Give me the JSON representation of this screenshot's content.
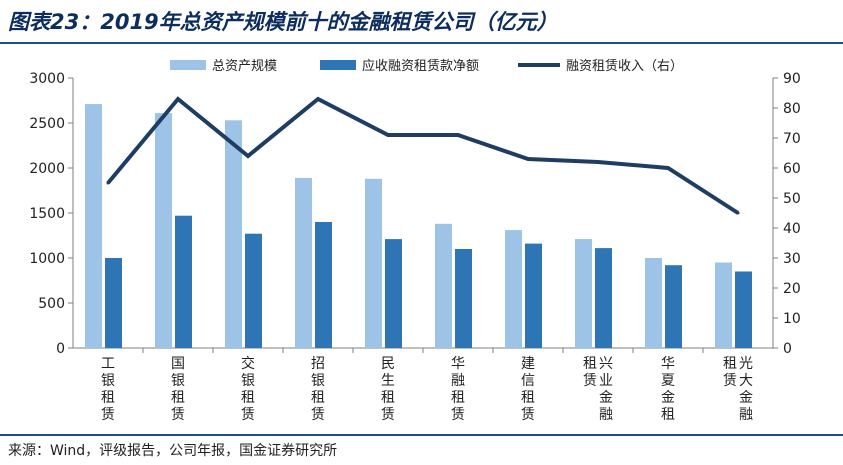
{
  "header": {
    "title": "图表23：2019年总资产规模前十的金融租赁公司（亿元）"
  },
  "footer": {
    "source": "来源：Wind，评级报告，公司年报，国金证券研究所"
  },
  "colors": {
    "total_assets": "#9dc3e6",
    "receivables": "#2e75b6",
    "income_line": "#1f3d63"
  },
  "chart_data": {
    "type": "bar",
    "categories": [
      "工银租赁",
      "国银租赁",
      "交银租赁",
      "招银租赁",
      "民生租赁",
      "华融租赁",
      "建信租赁",
      "兴业金融租赁",
      "华夏金租",
      "光大金融租赁"
    ],
    "category_labels": [
      [
        [
          "工",
          "银",
          "租",
          "赁"
        ]
      ],
      [
        [
          "国",
          "银",
          "租",
          "赁"
        ]
      ],
      [
        [
          "交",
          "银",
          "租",
          "赁"
        ]
      ],
      [
        [
          "招",
          "银",
          "租",
          "赁"
        ]
      ],
      [
        [
          "民",
          "生",
          "租",
          "赁"
        ]
      ],
      [
        [
          "华",
          "融",
          "租",
          "赁"
        ]
      ],
      [
        [
          "建",
          "信",
          "租",
          "赁"
        ]
      ],
      [
        [
          "租",
          "赁"
        ],
        [
          "兴",
          "业",
          "金",
          "融"
        ]
      ],
      [
        [
          "华",
          "夏",
          "金",
          "租"
        ]
      ],
      [
        [
          "租",
          "赁"
        ],
        [
          "光",
          "大",
          "金",
          "融"
        ]
      ]
    ],
    "series": [
      {
        "name": "总资产规模",
        "type": "bar",
        "axis": "left",
        "values": [
          2710,
          2610,
          2530,
          1890,
          1880,
          1380,
          1310,
          1210,
          1000,
          950
        ]
      },
      {
        "name": "应收融资租赁款净额",
        "type": "bar",
        "axis": "left",
        "values": [
          1000,
          1470,
          1270,
          1400,
          1210,
          1100,
          1160,
          1110,
          920,
          850
        ]
      },
      {
        "name": "融资租赁收入（右）",
        "type": "line",
        "axis": "right",
        "values": [
          55,
          83,
          64,
          83,
          71,
          71,
          63,
          62,
          60,
          45
        ]
      }
    ],
    "y_left": {
      "min": 0,
      "max": 3000,
      "ticks": [
        "0",
        "500",
        "1000",
        "1500",
        "2000",
        "2500",
        "3000"
      ]
    },
    "y_right": {
      "min": 0,
      "max": 90,
      "ticks": [
        "0",
        "10",
        "20",
        "30",
        "40",
        "50",
        "60",
        "70",
        "80",
        "90"
      ]
    },
    "legend": "top",
    "grid": false
  }
}
